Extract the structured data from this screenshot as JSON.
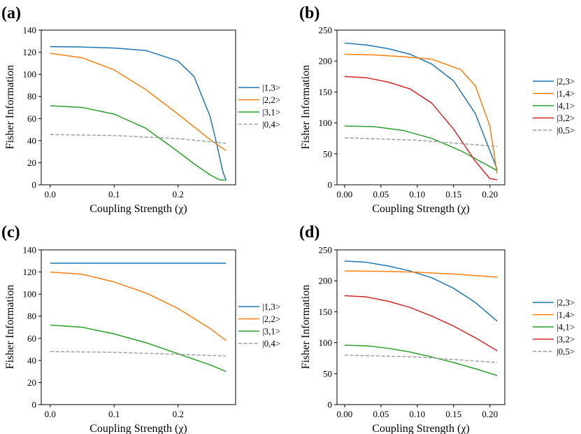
{
  "chart_data": [
    {
      "type": "line",
      "panel_label": "(a)",
      "xlabel": "Coupling Strength (χ)",
      "ylabel": "Fisher Information",
      "xlim": [
        -0.014,
        0.29
      ],
      "ylim": [
        0,
        140
      ],
      "xticks": [
        0.0,
        0.1,
        0.2
      ],
      "xtick_labels": [
        "0.0",
        "0.1",
        "0.2"
      ],
      "yticks": [
        0,
        20,
        40,
        60,
        80,
        100,
        120,
        140
      ],
      "ytick_labels": [
        "0",
        "20",
        "40",
        "60",
        "80",
        "100",
        "120",
        "140"
      ],
      "legend": "right",
      "series": [
        {
          "name": "|1,3>",
          "color": "#1f77b4",
          "dashed": false,
          "x": [
            0,
            0.05,
            0.1,
            0.15,
            0.2,
            0.225,
            0.25,
            0.26,
            0.27,
            0.275
          ],
          "y": [
            125,
            124.7,
            123.8,
            121.5,
            112,
            98,
            62,
            38,
            12,
            4
          ]
        },
        {
          "name": "|2,2>",
          "color": "#ff7f0e",
          "dashed": false,
          "x": [
            0,
            0.05,
            0.1,
            0.15,
            0.2,
            0.25,
            0.275
          ],
          "y": [
            119,
            115,
            104,
            86,
            64,
            41,
            31
          ]
        },
        {
          "name": "|3,1>",
          "color": "#2ca02c",
          "dashed": false,
          "x": [
            0,
            0.05,
            0.1,
            0.15,
            0.2,
            0.225,
            0.25,
            0.265,
            0.275
          ],
          "y": [
            71.5,
            70,
            64,
            51,
            30,
            19,
            9,
            4.5,
            4
          ]
        },
        {
          "name": "|0,4>",
          "color": "#a0a0a0",
          "dashed": true,
          "x": [
            0,
            0.1,
            0.2,
            0.275
          ],
          "y": [
            45.5,
            44.6,
            41.8,
            37.5
          ]
        }
      ]
    },
    {
      "type": "line",
      "panel_label": "(b)",
      "xlabel": "Coupling Strength (χ)",
      "ylabel": "Fisher Information",
      "xlim": [
        -0.0105,
        0.2205
      ],
      "ylim": [
        0,
        250
      ],
      "xticks": [
        0.0,
        0.05,
        0.1,
        0.15,
        0.2
      ],
      "xtick_labels": [
        "0.00",
        "0.05",
        "0.10",
        "0.15",
        "0.20"
      ],
      "yticks": [
        0,
        50,
        100,
        150,
        200,
        250
      ],
      "ytick_labels": [
        "0",
        "50",
        "100",
        "150",
        "200",
        "250"
      ],
      "legend": "right",
      "series": [
        {
          "name": "|2,3>",
          "color": "#1f77b4",
          "dashed": false,
          "x": [
            0,
            0.03,
            0.06,
            0.09,
            0.12,
            0.15,
            0.18,
            0.2,
            0.21
          ],
          "y": [
            229,
            226,
            220,
            211,
            195,
            168,
            115,
            55,
            25
          ]
        },
        {
          "name": "|1,4>",
          "color": "#ff7f0e",
          "dashed": false,
          "x": [
            0,
            0.04,
            0.08,
            0.12,
            0.16,
            0.18,
            0.2,
            0.21
          ],
          "y": [
            211,
            210,
            207,
            203,
            186,
            160,
            95,
            18
          ]
        },
        {
          "name": "|4,1>",
          "color": "#2ca02c",
          "dashed": false,
          "x": [
            0,
            0.04,
            0.08,
            0.12,
            0.16,
            0.21
          ],
          "y": [
            95,
            94,
            88,
            75,
            55,
            23
          ]
        },
        {
          "name": "|3,2>",
          "color": "#d62728",
          "dashed": false,
          "x": [
            0,
            0.03,
            0.06,
            0.09,
            0.12,
            0.15,
            0.18,
            0.2,
            0.21
          ],
          "y": [
            175,
            173,
            166,
            155,
            132,
            90,
            38,
            10,
            8
          ]
        },
        {
          "name": "|0,5>",
          "color": "#a0a0a0",
          "dashed": true,
          "x": [
            0,
            0.1,
            0.21
          ],
          "y": [
            76,
            72,
            62
          ]
        }
      ]
    },
    {
      "type": "line",
      "panel_label": "(c)",
      "xlabel": "Coupling Strength (χ)",
      "ylabel": "Fisher Information",
      "xlim": [
        -0.014,
        0.29
      ],
      "ylim": [
        0,
        140
      ],
      "xticks": [
        0.0,
        0.1,
        0.2
      ],
      "xtick_labels": [
        "0.0",
        "0.1",
        "0.2"
      ],
      "yticks": [
        0,
        20,
        40,
        60,
        80,
        100,
        120,
        140
      ],
      "ytick_labels": [
        "0",
        "20",
        "40",
        "60",
        "80",
        "100",
        "120",
        "140"
      ],
      "legend": "right",
      "series": [
        {
          "name": "|1,3>",
          "color": "#1f77b4",
          "dashed": false,
          "x": [
            0,
            0.275
          ],
          "y": [
            128,
            128
          ]
        },
        {
          "name": "|2,2>",
          "color": "#ff7f0e",
          "dashed": false,
          "x": [
            0,
            0.05,
            0.1,
            0.15,
            0.2,
            0.25,
            0.275
          ],
          "y": [
            120,
            118,
            111,
            101,
            87,
            69,
            58
          ]
        },
        {
          "name": "|3,1>",
          "color": "#2ca02c",
          "dashed": false,
          "x": [
            0,
            0.05,
            0.1,
            0.15,
            0.2,
            0.25,
            0.275
          ],
          "y": [
            72,
            70,
            64,
            56,
            46,
            36,
            30
          ]
        },
        {
          "name": "|0,4>",
          "color": "#a0a0a0",
          "dashed": true,
          "x": [
            0,
            0.1,
            0.2,
            0.275
          ],
          "y": [
            48,
            47.3,
            45.5,
            44
          ]
        }
      ]
    },
    {
      "type": "line",
      "panel_label": "(d)",
      "xlabel": "Coupling Strength (χ)",
      "ylabel": "Fisher Information",
      "xlim": [
        -0.0105,
        0.2205
      ],
      "ylim": [
        0,
        250
      ],
      "xticks": [
        0.0,
        0.05,
        0.1,
        0.15,
        0.2
      ],
      "xtick_labels": [
        "0.00",
        "0.05",
        "0.10",
        "0.15",
        "0.20"
      ],
      "yticks": [
        0,
        50,
        100,
        150,
        200,
        250
      ],
      "ytick_labels": [
        "0",
        "50",
        "100",
        "150",
        "200",
        "250"
      ],
      "legend": "right",
      "series": [
        {
          "name": "|2,3>",
          "color": "#1f77b4",
          "dashed": false,
          "x": [
            0,
            0.03,
            0.06,
            0.09,
            0.12,
            0.15,
            0.18,
            0.21
          ],
          "y": [
            232,
            230,
            224,
            216,
            205,
            188,
            165,
            135
          ]
        },
        {
          "name": "|1,4>",
          "color": "#ff7f0e",
          "dashed": false,
          "x": [
            0,
            0.05,
            0.1,
            0.15,
            0.21
          ],
          "y": [
            216,
            215.5,
            214,
            211,
            206
          ]
        },
        {
          "name": "|4,1>",
          "color": "#2ca02c",
          "dashed": false,
          "x": [
            0,
            0.03,
            0.06,
            0.09,
            0.12,
            0.15,
            0.18,
            0.21
          ],
          "y": [
            96,
            95,
            91,
            85,
            77,
            68,
            58,
            47
          ]
        },
        {
          "name": "|3,2>",
          "color": "#d62728",
          "dashed": false,
          "x": [
            0,
            0.03,
            0.06,
            0.09,
            0.12,
            0.15,
            0.18,
            0.21
          ],
          "y": [
            176,
            174,
            167,
            157,
            143,
            127,
            108,
            87
          ]
        },
        {
          "name": "|0,5>",
          "color": "#a0a0a0",
          "dashed": true,
          "x": [
            0,
            0.1,
            0.21
          ],
          "y": [
            80,
            77,
            68
          ]
        }
      ]
    }
  ]
}
